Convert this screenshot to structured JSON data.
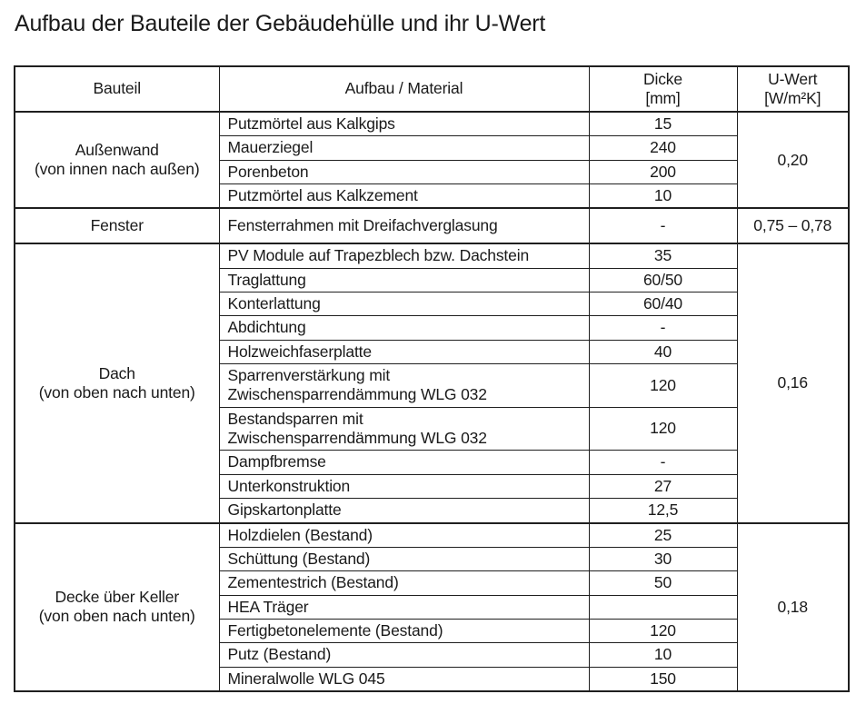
{
  "page": {
    "title": "Aufbau der Bauteile der Gebäudehülle und ihr U-Wert"
  },
  "colors": {
    "background": "#ffffff",
    "text": "#1a1a1a",
    "border": "#1f1f1f"
  },
  "table": {
    "header": {
      "bauteil": "Bauteil",
      "material": "Aufbau / Material",
      "dicke_label": "Dicke",
      "dicke_unit": "[mm]",
      "uwert_label": "U-Wert",
      "uwert_unit": "[W/m²K]"
    },
    "groups": [
      {
        "bauteil": "Außenwand\n(von innen nach außen)",
        "u_wert": "0,20",
        "rows": [
          {
            "material": "Putzmörtel aus Kalkgips",
            "dicke": "15"
          },
          {
            "material": "Mauerziegel",
            "dicke": "240"
          },
          {
            "material": "Porenbeton",
            "dicke": "200"
          },
          {
            "material": "Putzmörtel aus Kalkzement",
            "dicke": "10"
          }
        ]
      },
      {
        "bauteil": "Fenster",
        "u_wert": "0,75 – 0,78",
        "rows": [
          {
            "material": "Fensterrahmen mit Dreifachverglasung",
            "dicke": "-"
          }
        ]
      },
      {
        "bauteil": "Dach\n(von oben nach unten)",
        "u_wert": "0,16",
        "rows": [
          {
            "material": "PV Module auf Trapezblech  bzw. Dachstein",
            "dicke": "35"
          },
          {
            "material": "Traglattung",
            "dicke": "60/50"
          },
          {
            "material": "Konterlattung",
            "dicke": "60/40"
          },
          {
            "material": "Abdichtung",
            "dicke": "-"
          },
          {
            "material": "Holzweichfaserplatte",
            "dicke": "40"
          },
          {
            "material": "Sparrenverstärkung mit\nZwischensparrendämmung WLG 032",
            "dicke": "120"
          },
          {
            "material": "Bestandsparren mit\nZwischensparrendämmung WLG 032",
            "dicke": "120"
          },
          {
            "material": "Dampfbremse",
            "dicke": "-"
          },
          {
            "material": "Unterkonstruktion",
            "dicke": "27"
          },
          {
            "material": "Gipskartonplatte",
            "dicke": "12,5"
          }
        ]
      },
      {
        "bauteil": "Decke über Keller\n(von oben nach unten)",
        "u_wert": "0,18",
        "rows": [
          {
            "material": "Holzdielen (Bestand)",
            "dicke": "25"
          },
          {
            "material": "Schüttung (Bestand)",
            "dicke": "30"
          },
          {
            "material": "Zementestrich (Bestand)",
            "dicke": "50"
          },
          {
            "material": "HEA Träger",
            "dicke": ""
          },
          {
            "material": "Fertigbetonelemente (Bestand)",
            "dicke": "120"
          },
          {
            "material": "Putz (Bestand)",
            "dicke": "10"
          },
          {
            "material": "Mineralwolle WLG 045",
            "dicke": "150"
          }
        ]
      }
    ]
  }
}
